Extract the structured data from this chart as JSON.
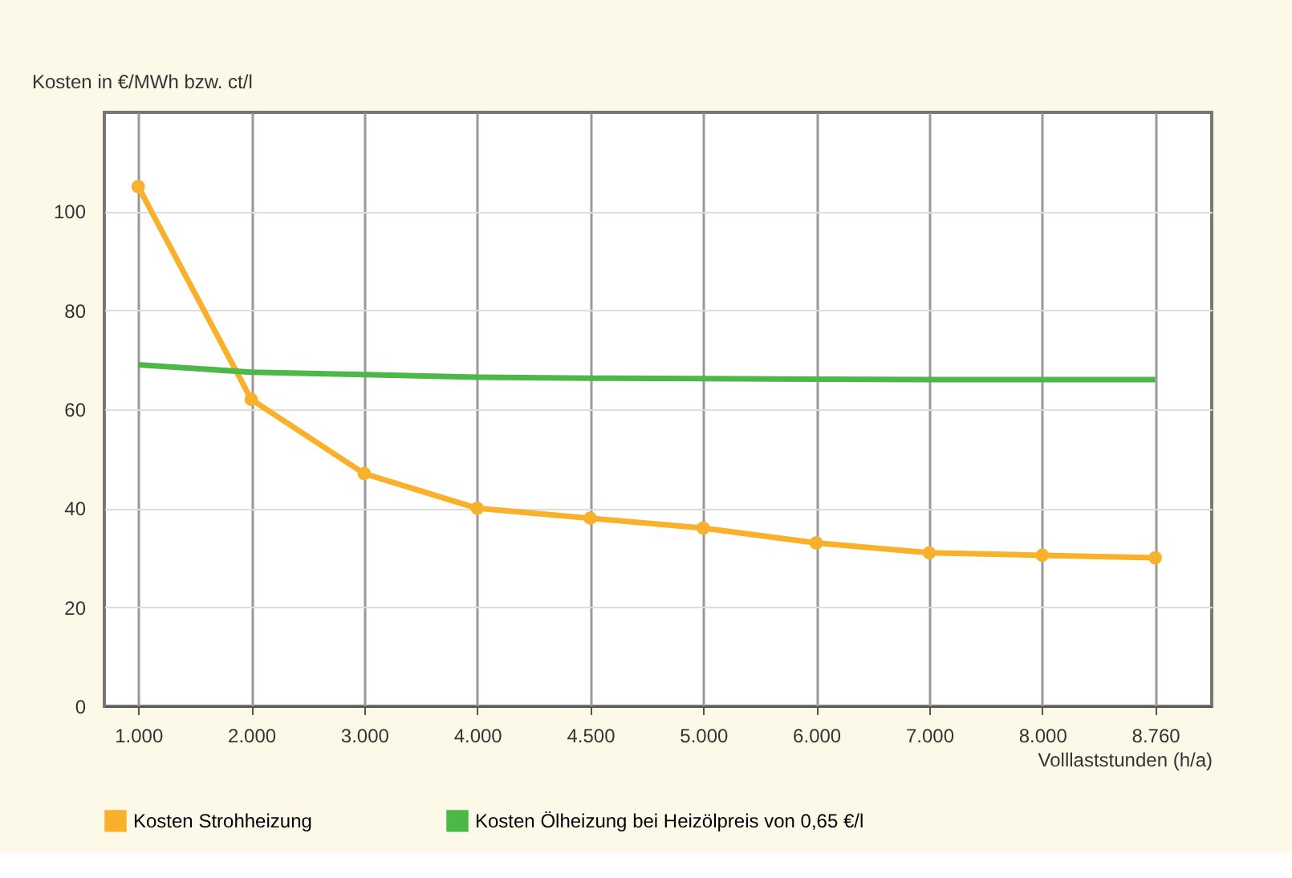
{
  "chart_data": {
    "type": "line",
    "ylabel": "Kosten in €/MWh bzw. ct/l",
    "xlabel": "Volllaststunden (h/a)",
    "categories": [
      "1.000",
      "2.000",
      "3.000",
      "4.000",
      "4.500",
      "5.000",
      "6.000",
      "7.000",
      "8.000",
      "8.760"
    ],
    "series": [
      {
        "name": "Kosten Strohheizung",
        "color": "#f9b02b",
        "marker": "circle",
        "values": [
          105,
          62,
          47,
          40,
          38,
          36,
          33,
          31,
          30.5,
          30
        ]
      },
      {
        "name": "Kosten Ölheizung bei Heizölpreis von 0,65 €/l",
        "color": "#4cb848",
        "marker": "none",
        "values": [
          69,
          67.5,
          67,
          66.5,
          66.3,
          66.2,
          66.1,
          66,
          66,
          66
        ]
      }
    ],
    "ylim": [
      0,
      120
    ],
    "yticks": [
      0,
      20,
      40,
      60,
      80,
      100
    ],
    "grid": true,
    "legend": "bottom"
  }
}
